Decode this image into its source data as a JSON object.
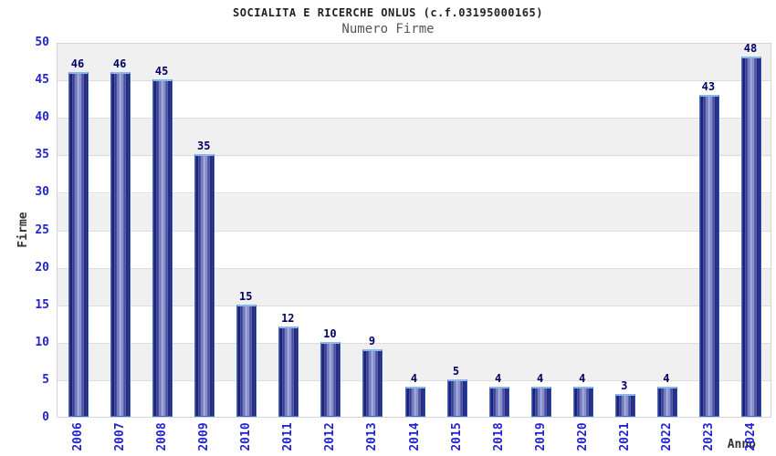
{
  "chart_data": {
    "type": "bar",
    "title": "SOCIALITA E RICERCHE ONLUS (c.f.03195000165)",
    "subtitle": "Numero Firme",
    "xlabel": "Anno",
    "ylabel": "Firme",
    "categories": [
      "2006",
      "2007",
      "2008",
      "2009",
      "2010",
      "2011",
      "2012",
      "2013",
      "2014",
      "2015",
      "2018",
      "2019",
      "2020",
      "2021",
      "2022",
      "2023",
      "2024"
    ],
    "values": [
      46,
      46,
      45,
      35,
      15,
      12,
      10,
      9,
      4,
      5,
      4,
      4,
      4,
      3,
      4,
      43,
      48
    ],
    "ylim": [
      0,
      50
    ],
    "ytick_step": 5,
    "grid": "horizontal-bands",
    "legend": "none",
    "colors": {
      "bar_edge_dark": "#0d1160",
      "bar_center_light": "#9aa3d8",
      "bar_border": "#3f6cd0",
      "bar_border_top": "#8cb8e8",
      "tick_label": "#2525cc",
      "value_label": "#000066",
      "band_gray": "#f0f0f0",
      "band_white": "#ffffff",
      "gridline": "#dddddd",
      "title": "#222222",
      "subtitle": "#555555",
      "axis_label": "#333333"
    }
  }
}
